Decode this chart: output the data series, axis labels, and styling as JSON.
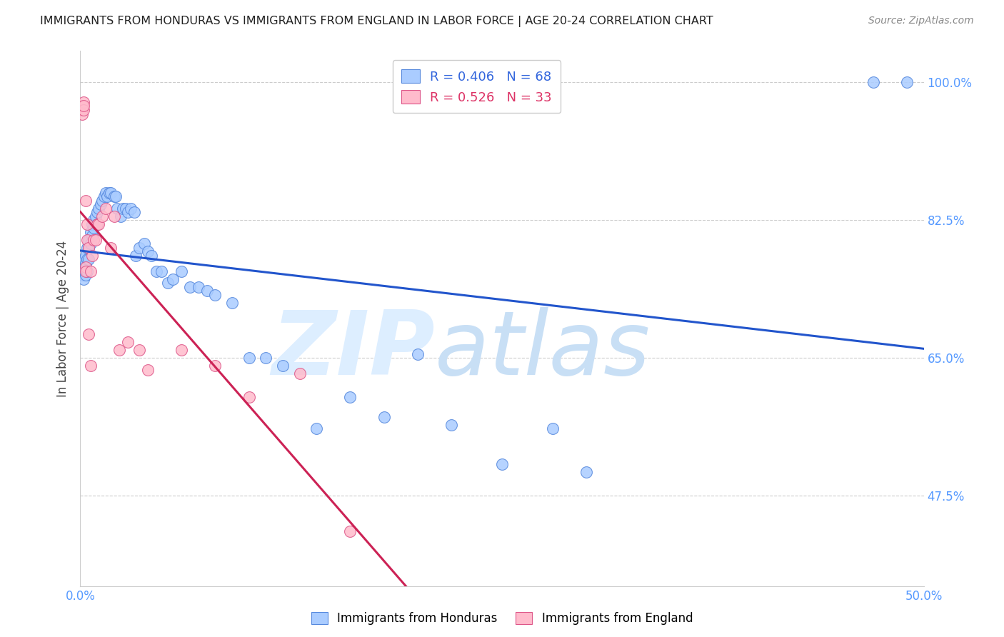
{
  "title": "IMMIGRANTS FROM HONDURAS VS IMMIGRANTS FROM ENGLAND IN LABOR FORCE | AGE 20-24 CORRELATION CHART",
  "source": "Source: ZipAtlas.com",
  "ylabel": "In Labor Force | Age 20-24",
  "xlim": [
    0.0,
    0.5
  ],
  "ylim": [
    0.36,
    1.04
  ],
  "xticks": [
    0.0,
    0.1,
    0.2,
    0.3,
    0.4,
    0.5
  ],
  "xticklabels": [
    "0.0%",
    "",
    "",
    "",
    "",
    "50.0%"
  ],
  "yticks": [
    0.475,
    0.65,
    0.825,
    1.0
  ],
  "yticklabels": [
    "47.5%",
    "65.0%",
    "82.5%",
    "100.0%"
  ],
  "honduras_color": "#aaccff",
  "honduras_edge": "#5588dd",
  "england_color": "#ffbbcc",
  "england_edge": "#dd5588",
  "honduras_line_color": "#2255cc",
  "england_line_color": "#cc2255",
  "watermark_color": "#ddeeff",
  "grid_color": "#cccccc",
  "tick_color": "#5599ff",
  "title_color": "#222222",
  "source_color": "#888888",
  "background_color": "#ffffff",
  "honduras_x": [
    0.001,
    0.001,
    0.002,
    0.002,
    0.002,
    0.003,
    0.003,
    0.003,
    0.004,
    0.004,
    0.004,
    0.005,
    0.005,
    0.005,
    0.006,
    0.006,
    0.007,
    0.007,
    0.008,
    0.008,
    0.009,
    0.01,
    0.01,
    0.011,
    0.012,
    0.013,
    0.014,
    0.015,
    0.016,
    0.017,
    0.018,
    0.02,
    0.021,
    0.022,
    0.024,
    0.025,
    0.027,
    0.028,
    0.03,
    0.032,
    0.033,
    0.035,
    0.038,
    0.04,
    0.042,
    0.045,
    0.048,
    0.052,
    0.055,
    0.06,
    0.065,
    0.07,
    0.075,
    0.08,
    0.09,
    0.1,
    0.11,
    0.12,
    0.14,
    0.16,
    0.18,
    0.2,
    0.22,
    0.25,
    0.28,
    0.3,
    0.47,
    0.49
  ],
  "honduras_y": [
    0.76,
    0.755,
    0.775,
    0.76,
    0.75,
    0.78,
    0.77,
    0.755,
    0.79,
    0.775,
    0.76,
    0.8,
    0.79,
    0.775,
    0.81,
    0.795,
    0.82,
    0.805,
    0.825,
    0.815,
    0.83,
    0.835,
    0.82,
    0.84,
    0.845,
    0.85,
    0.855,
    0.86,
    0.855,
    0.86,
    0.86,
    0.855,
    0.855,
    0.84,
    0.83,
    0.84,
    0.84,
    0.835,
    0.84,
    0.835,
    0.78,
    0.79,
    0.795,
    0.785,
    0.78,
    0.76,
    0.76,
    0.745,
    0.75,
    0.76,
    0.74,
    0.74,
    0.735,
    0.73,
    0.72,
    0.65,
    0.65,
    0.64,
    0.56,
    0.6,
    0.575,
    0.655,
    0.565,
    0.515,
    0.56,
    0.505,
    1.0,
    1.0
  ],
  "england_x": [
    0.001,
    0.001,
    0.001,
    0.002,
    0.002,
    0.002,
    0.003,
    0.003,
    0.003,
    0.004,
    0.004,
    0.005,
    0.005,
    0.006,
    0.006,
    0.007,
    0.008,
    0.009,
    0.01,
    0.011,
    0.013,
    0.015,
    0.018,
    0.02,
    0.023,
    0.028,
    0.035,
    0.04,
    0.06,
    0.08,
    0.1,
    0.13,
    0.16
  ],
  "england_y": [
    0.97,
    0.965,
    0.96,
    0.975,
    0.965,
    0.97,
    0.85,
    0.765,
    0.76,
    0.82,
    0.8,
    0.79,
    0.68,
    0.76,
    0.64,
    0.78,
    0.8,
    0.8,
    0.82,
    0.82,
    0.83,
    0.84,
    0.79,
    0.83,
    0.66,
    0.67,
    0.66,
    0.635,
    0.66,
    0.64,
    0.6,
    0.63,
    0.43
  ],
  "legend_label_hond": "R = 0.406   N = 68",
  "legend_label_eng": "R = 0.526   N = 33",
  "legend_color_hond": "#3366dd",
  "legend_color_eng": "#dd3366"
}
